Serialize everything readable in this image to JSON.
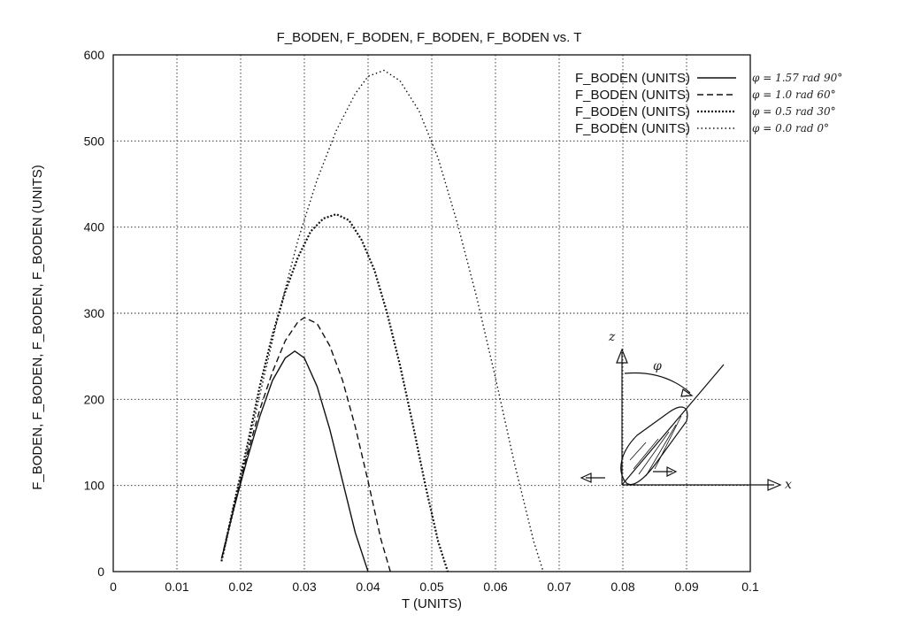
{
  "chart_data": {
    "type": "line",
    "title": "F_BODEN, F_BODEN, F_BODEN, F_BODEN vs. T",
    "xlabel": "T (UNITS)",
    "ylabel": "F_BODEN, F_BODEN, F_BODEN, F_BODEN (UNITS)",
    "xlim": [
      0,
      0.1
    ],
    "ylim": [
      0,
      600
    ],
    "xticks": [
      "0",
      "0.01",
      "0.02",
      "0.03",
      "0.04",
      "0.05",
      "0.06",
      "0.07",
      "0.08",
      "0.09",
      "0.1"
    ],
    "yticks": [
      "0",
      "100",
      "200",
      "300",
      "400",
      "500",
      "600"
    ],
    "grid": true,
    "legend_position": "top-right",
    "series": [
      {
        "name": "F_BODEN (UNITS)",
        "note": "φ = 1.57 rad 90°",
        "style": "solid",
        "x": [
          0.017,
          0.019,
          0.021,
          0.023,
          0.025,
          0.027,
          0.0285,
          0.03,
          0.032,
          0.034,
          0.036,
          0.038,
          0.04
        ],
        "y": [
          15,
          75,
          130,
          180,
          222,
          248,
          256,
          248,
          215,
          165,
          105,
          45,
          0
        ]
      },
      {
        "name": "F_BODEN (UNITS)",
        "note": "φ = 1.0 rad 60°",
        "style": "dashed",
        "x": [
          0.017,
          0.019,
          0.021,
          0.023,
          0.025,
          0.027,
          0.029,
          0.03,
          0.032,
          0.034,
          0.036,
          0.038,
          0.04,
          0.042,
          0.0435
        ],
        "y": [
          15,
          78,
          135,
          188,
          232,
          268,
          290,
          295,
          288,
          262,
          222,
          168,
          105,
          38,
          0
        ]
      },
      {
        "name": "F_BODEN (UNITS)",
        "note": "φ = 0.5 rad 30°",
        "style": "dense-dotted",
        "x": [
          0.017,
          0.019,
          0.021,
          0.023,
          0.025,
          0.027,
          0.029,
          0.031,
          0.033,
          0.035,
          0.037,
          0.039,
          0.041,
          0.043,
          0.045,
          0.047,
          0.049,
          0.051,
          0.0525
        ],
        "y": [
          12,
          80,
          145,
          215,
          275,
          325,
          365,
          395,
          410,
          415,
          408,
          385,
          350,
          300,
          240,
          172,
          100,
          35,
          0
        ]
      },
      {
        "name": "F_BODEN (UNITS)",
        "note": "φ = 0.0 rad 0°",
        "style": "dotted",
        "x": [
          0.017,
          0.02,
          0.023,
          0.026,
          0.029,
          0.032,
          0.035,
          0.038,
          0.04,
          0.0425,
          0.045,
          0.048,
          0.051,
          0.054,
          0.057,
          0.06,
          0.063,
          0.066,
          0.0675
        ],
        "y": [
          12,
          105,
          205,
          300,
          385,
          455,
          512,
          555,
          575,
          582,
          570,
          535,
          480,
          405,
          320,
          225,
          125,
          35,
          0
        ]
      }
    ]
  },
  "sketch": {
    "axis_z_label": "z",
    "axis_x_label": "x",
    "angle_label": "φ"
  },
  "colors": {
    "ink": "#111111",
    "grid": "#222222",
    "paper": "#ffffff"
  }
}
